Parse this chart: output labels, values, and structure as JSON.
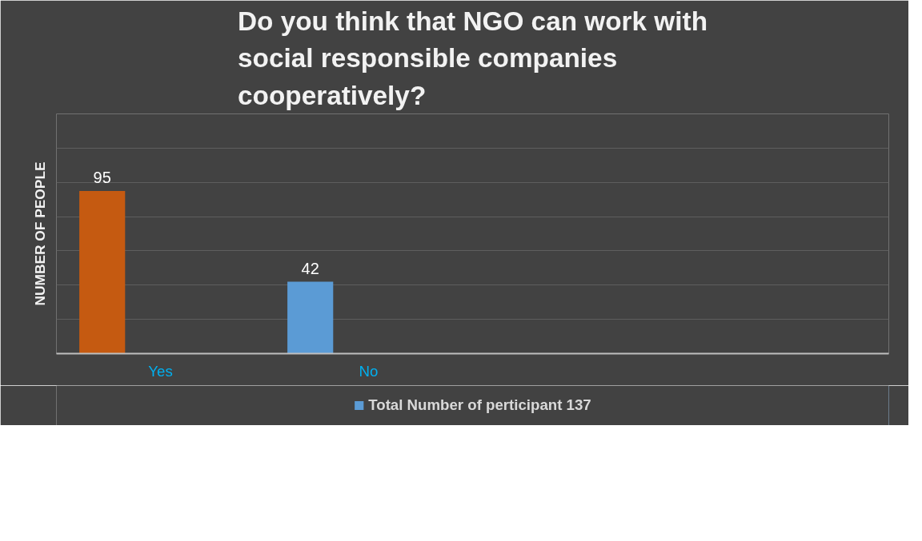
{
  "chart_data": {
    "type": "bar",
    "title": "Do you think that NGO can work with social responsible companies cooperatively?",
    "ylabel": "NUMBER OF PEOPLE",
    "categories": [
      "Yes",
      "No",
      null,
      null
    ],
    "series": [
      {
        "name": "Total Number of perticipant 137",
        "color": "#5b9bd5",
        "colors": [
          "#c55a11",
          "#5b9bd5",
          null,
          null
        ],
        "values": [
          95,
          42,
          null,
          null
        ]
      }
    ],
    "ylim": [
      0,
      140
    ],
    "yticks": [
      {
        "value": 0,
        "label": null
      },
      {
        "value": 20,
        "label": null
      },
      {
        "value": 40,
        "label": null
      },
      {
        "value": 60,
        "label": null
      },
      {
        "value": 80,
        "label": null
      },
      {
        "value": 100,
        "label": null
      },
      {
        "value": 120,
        "label": null
      },
      {
        "value": 140,
        "label": null
      }
    ],
    "tick_labels": "x",
    "grid": "y",
    "legend": "bottom",
    "data_labels": true
  }
}
